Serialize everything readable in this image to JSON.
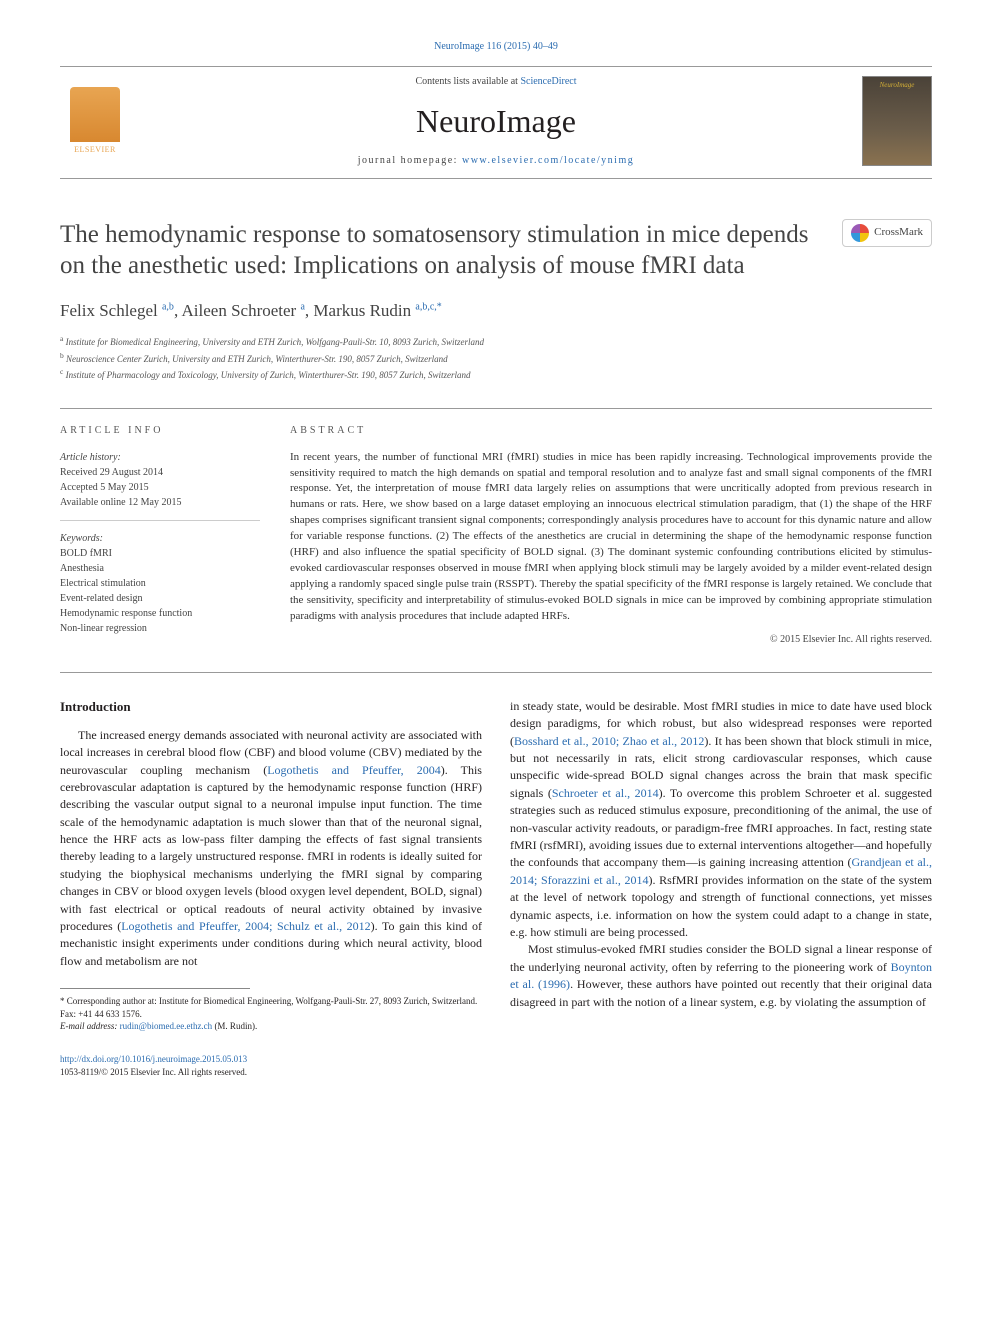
{
  "citation": "NeuroImage 116 (2015) 40–49",
  "masthead": {
    "contents_prefix": "Contents lists available at ",
    "contents_link": "ScienceDirect",
    "journal": "NeuroImage",
    "homepage_prefix": "journal homepage: ",
    "homepage_link": "www.elsevier.com/locate/ynimg",
    "publisher": "ELSEVIER",
    "cover_title": "NeuroImage"
  },
  "crossmark": "CrossMark",
  "title": "The hemodynamic response to somatosensory stimulation in mice depends on the anesthetic used: Implications on analysis of mouse fMRI data",
  "authors": {
    "a1_name": "Felix Schlegel ",
    "a1_aff": "a,b",
    "sep1": ", ",
    "a2_name": "Aileen Schroeter ",
    "a2_aff": "a",
    "sep2": ", ",
    "a3_name": "Markus Rudin ",
    "a3_aff": "a,b,c,",
    "star": "*"
  },
  "affiliations": {
    "a": "Institute for Biomedical Engineering, University and ETH Zurich, Wolfgang-Pauli-Str. 10, 8093 Zurich, Switzerland",
    "b": "Neuroscience Center Zurich, University and ETH Zurich, Winterthurer-Str. 190, 8057 Zurich, Switzerland",
    "c": "Institute of Pharmacology and Toxicology, University of Zurich, Winterthurer-Str. 190, 8057 Zurich, Switzerland"
  },
  "info": {
    "label": "article info",
    "history_label": "Article history:",
    "received": "Received 29 August 2014",
    "accepted": "Accepted 5 May 2015",
    "online": "Available online 12 May 2015",
    "keywords_label": "Keywords:",
    "keywords": [
      "BOLD fMRI",
      "Anesthesia",
      "Electrical stimulation",
      "Event-related design",
      "Hemodynamic response function",
      "Non-linear regression"
    ]
  },
  "abstract": {
    "label": "abstract",
    "text": "In recent years, the number of functional MRI (fMRI) studies in mice has been rapidly increasing. Technological improvements provide the sensitivity required to match the high demands on spatial and temporal resolution and to analyze fast and small signal components of the fMRI response. Yet, the interpretation of mouse fMRI data largely relies on assumptions that were uncritically adopted from previous research in humans or rats. Here, we show based on a large dataset employing an innocuous electrical stimulation paradigm, that (1) the shape of the HRF shapes comprises significant transient signal components; correspondingly analysis procedures have to account for this dynamic nature and allow for variable response functions. (2) The effects of the anesthetics are crucial in determining the shape of the hemodynamic response function (HRF) and also influence the spatial specificity of BOLD signal. (3) The dominant systemic confounding contributions elicited by stimulus-evoked cardiovascular responses observed in mouse fMRI when applying block stimuli may be largely avoided by a milder event-related design applying a randomly spaced single pulse train (RSSPT). Thereby the spatial specificity of the fMRI response is largely retained. We conclude that the sensitivity, specificity and interpretability of stimulus-evoked BOLD signals in mice can be improved by combining appropriate stimulation paradigms with analysis procedures that include adapted HRFs.",
    "copyright": "© 2015 Elsevier Inc. All rights reserved."
  },
  "body": {
    "heading": "Introduction",
    "p1a": "The increased energy demands associated with neuronal activity are associated with local increases in cerebral blood flow (CBF) and blood volume (CBV) mediated by the neurovascular coupling mechanism (",
    "p1_link1": "Logothetis and Pfeuffer, 2004",
    "p1b": "). This cerebrovascular adaptation is captured by the hemodynamic response function (HRF) describing the vascular output signal to a neuronal impulse input function. The time scale of the hemodynamic adaptation is much slower than that of the neuronal signal, hence the HRF acts as low-pass filter damping the effects of fast signal transients thereby leading to a largely unstructured response. fMRI in rodents is ideally suited for studying the biophysical mechanisms underlying the fMRI signal by comparing changes in CBV or blood oxygen levels (blood oxygen level dependent, BOLD, signal) with fast electrical or optical readouts of neural activity obtained by invasive procedures (",
    "p1_link2": "Logothetis and Pfeuffer, 2004; Schulz et al., 2012",
    "p1c": "). To gain this kind of mechanistic insight experiments under conditions during which neural activity, blood flow and metabolism are not ",
    "p2a": "in steady state, would be desirable. Most fMRI studies in mice to date have used block design paradigms, for which robust, but also widespread responses were reported (",
    "p2_link1": "Bosshard et al., 2010; Zhao et al., 2012",
    "p2b": "). It has been shown that block stimuli in mice, but not necessarily in rats, elicit strong cardiovascular responses, which cause unspecific wide-spread BOLD signal changes across the brain that mask specific signals (",
    "p2_link2": "Schroeter et al., 2014",
    "p2c": "). To overcome this problem Schroeter et al. suggested strategies such as reduced stimulus exposure, preconditioning of the animal, the use of non-vascular activity readouts, or paradigm-free fMRI approaches. In fact, resting state fMRI (rsfMRI), avoiding issues due to external interventions altogether—and hopefully the confounds that accompany them—is gaining increasing attention (",
    "p2_link3": "Grandjean et al., 2014; Sforazzini et al., 2014",
    "p2d": "). RsfMRI provides information on the state of the system at the level of network topology and strength of functional connections, yet misses dynamic aspects, i.e. information on how the system could adapt to a change in state, e.g. how stimuli are being processed.",
    "p3a": "Most stimulus-evoked fMRI studies consider the BOLD signal a linear response of the underlying neuronal activity, often by referring to the pioneering work of ",
    "p3_link1": "Boynton et al. (1996)",
    "p3b": ". However, these authors have pointed out recently that their original data disagreed in part with the notion of a linear system, e.g. by violating the assumption of"
  },
  "footnote": {
    "corr": "* Corresponding author at: Institute for Biomedical Engineering, Wolfgang-Pauli-Str. 27, 8093 Zurich, Switzerland. Fax: +41 44 633 1576.",
    "email_label": "E-mail address: ",
    "email": "rudin@biomed.ee.ethz.ch",
    "email_who": " (M. Rudin)."
  },
  "footer": {
    "doi": "http://dx.doi.org/10.1016/j.neuroimage.2015.05.013",
    "issn": "1053-8119/© 2015 Elsevier Inc. All rights reserved."
  },
  "colors": {
    "link": "#2b6cb0",
    "text": "#231f20",
    "rule": "#999999"
  }
}
